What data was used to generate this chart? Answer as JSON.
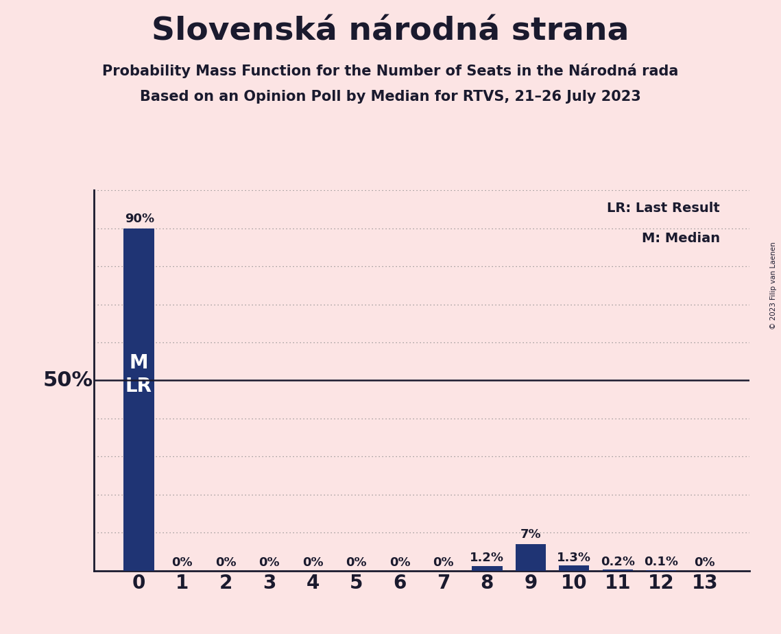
{
  "title": "Slovenská národná strana",
  "subtitle1": "Probability Mass Function for the Number of Seats in the Národná rada",
  "subtitle2": "Based on an Opinion Poll by Median for RTVS, 21–26 July 2023",
  "copyright": "© 2023 Filip van Laenen",
  "categories": [
    0,
    1,
    2,
    3,
    4,
    5,
    6,
    7,
    8,
    9,
    10,
    11,
    12,
    13
  ],
  "values": [
    90.0,
    0.0,
    0.0,
    0.0,
    0.0,
    0.0,
    0.0,
    0.0,
    1.2,
    7.0,
    1.3,
    0.2,
    0.1,
    0.0
  ],
  "bar_labels": [
    "90%",
    "0%",
    "0%",
    "0%",
    "0%",
    "0%",
    "0%",
    "0%",
    "1.2%",
    "7%",
    "1.3%",
    "0.2%",
    "0.1%",
    "0%"
  ],
  "special_label_idx": 9,
  "special_label_val": 7.0,
  "special_label_text": "7%",
  "bar_color": "#1f3474",
  "background_color": "#fce4e4",
  "median_line_y": 50,
  "median_label": "M",
  "lr_label": "LR",
  "legend_lr": "LR: Last Result",
  "legend_m": "M: Median",
  "ylim": [
    0,
    100
  ],
  "yticks": [
    0,
    10,
    20,
    30,
    40,
    50,
    60,
    70,
    80,
    90,
    100
  ],
  "title_fontsize": 34,
  "subtitle_fontsize": 15,
  "axis_50_fontsize": 22,
  "bar_label_fontsize": 13,
  "tick_fontsize": 20,
  "ml_label_fontsize": 20,
  "legend_fontsize": 14,
  "median_line_color": "#1a1a2e",
  "dotted_line_color": "#888888",
  "spine_color": "#1a1a2e",
  "text_color": "#1a1a2e",
  "white": "#ffffff"
}
